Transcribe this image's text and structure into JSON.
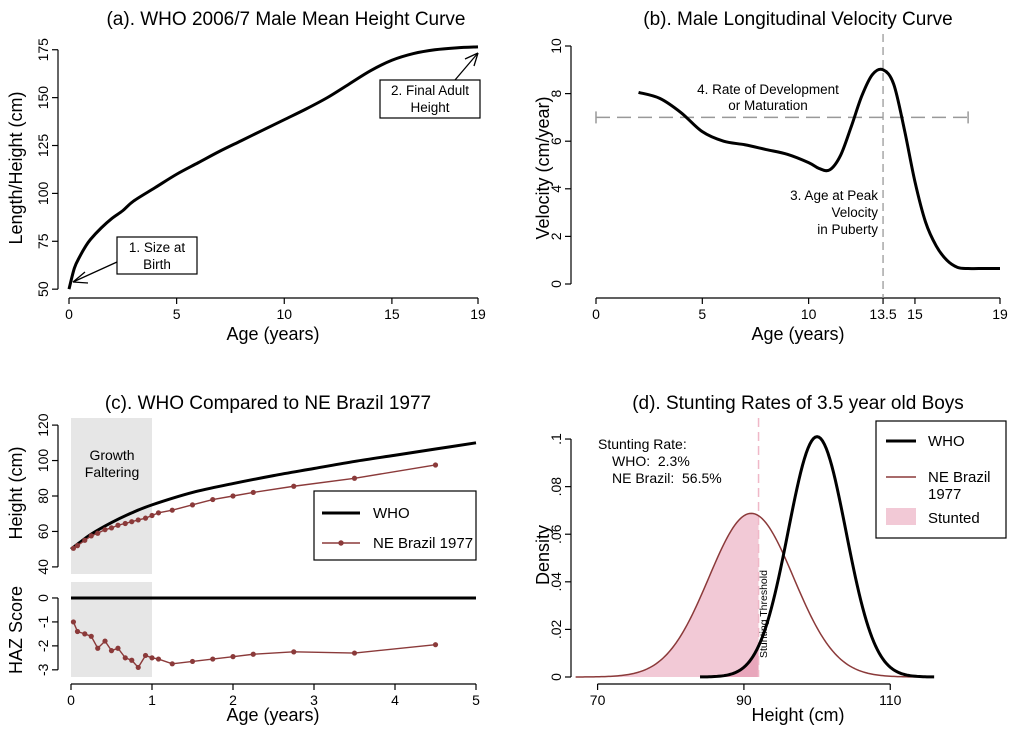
{
  "colors": {
    "who": "#000000",
    "brazil": "#8b3a3a",
    "stunted_fill": "#f2c9d6",
    "shade": "#e6e6e6",
    "dashed": "#999999",
    "threshold": "#f0b8c8"
  },
  "chart_data": [
    {
      "id": "a",
      "type": "line",
      "title": "(a). WHO 2006/7 Male Mean Height Curve",
      "xlabel": "Age (years)",
      "ylabel": "Length/Height (cm)",
      "xlim": [
        0,
        19
      ],
      "ylim": [
        48,
        178
      ],
      "xticks": [
        0,
        5,
        10,
        15,
        19
      ],
      "yticks": [
        50,
        75,
        100,
        125,
        150,
        175
      ],
      "series": [
        {
          "x": [
            0,
            0.25,
            0.5,
            0.75,
            1,
            1.5,
            2,
            2.5,
            3,
            4,
            5,
            6,
            7,
            8,
            9,
            10,
            11,
            12,
            13,
            14,
            15,
            16,
            17,
            18,
            19
          ],
          "y": [
            50,
            61,
            67,
            72,
            76,
            82,
            87,
            91,
            96,
            103,
            110,
            116,
            122,
            127.5,
            133,
            138.5,
            144,
            150,
            157,
            164,
            169.5,
            173,
            175,
            176,
            176.5
          ]
        }
      ],
      "annotations": [
        {
          "lines": [
            "1. Size at",
            "Birth"
          ],
          "x": 0,
          "y": 50
        },
        {
          "lines": [
            "2. Final Adult",
            "Height"
          ],
          "x": 19,
          "y": 176.5
        }
      ]
    },
    {
      "id": "b",
      "type": "line",
      "title": "(b). Male Longitudinal Velocity Curve",
      "xlabel": "Age (years)",
      "ylabel": "Velocity (cm/year)",
      "xlim": [
        0,
        19
      ],
      "ylim": [
        -0.3,
        10.5
      ],
      "xticks": [
        0,
        5,
        10,
        13.5,
        15,
        19
      ],
      "yticks": [
        0,
        2,
        4,
        6,
        8,
        10
      ],
      "series": [
        {
          "x": [
            2,
            3,
            4,
            5,
            6,
            7,
            8,
            9,
            10,
            10.5,
            11,
            11.5,
            12,
            12.5,
            13,
            13.5,
            14,
            14.5,
            15,
            15.5,
            16,
            16.5,
            17,
            17.5,
            18,
            19
          ],
          "y": [
            8.05,
            7.8,
            7.2,
            6.4,
            6.0,
            5.85,
            5.65,
            5.45,
            5.1,
            4.85,
            4.8,
            5.4,
            6.6,
            7.9,
            8.8,
            9.0,
            8.4,
            6.5,
            4.3,
            2.6,
            1.6,
            1.0,
            0.7,
            0.65,
            0.65,
            0.65
          ]
        }
      ],
      "reference_lines": [
        {
          "orientation": "horizontal",
          "value": 7,
          "from": 0,
          "to": 17.5
        },
        {
          "orientation": "vertical",
          "value": 13.5
        }
      ],
      "annotations": [
        {
          "lines": [
            "4. Rate of Development",
            "or Maturation"
          ],
          "x": 7.5,
          "y": 8.2
        },
        {
          "lines": [
            "3. Age at Peak",
            "Velocity",
            "in Puberty"
          ],
          "x": 11.2,
          "y": 3.4
        }
      ]
    },
    {
      "id": "c",
      "type": "line",
      "title": "(c). WHO Compared to NE Brazil 1977",
      "xlabel": "Age (years)",
      "xlim": [
        0,
        5
      ],
      "xticks": [
        0,
        1,
        2,
        3,
        4,
        5
      ],
      "shaded_region": {
        "x0": 0,
        "x1": 1,
        "lines": [
          "Growth",
          "Faltering"
        ]
      },
      "legend": {
        "position": "center-right",
        "entries": [
          "WHO",
          "NE Brazil 1977"
        ]
      },
      "panels": [
        {
          "ylabel": "Height (cm)",
          "ylim": [
            36,
            124
          ],
          "yticks": [
            40,
            60,
            80,
            100,
            120
          ],
          "series": [
            {
              "name": "WHO",
              "x": [
                0,
                0.1,
                0.25,
                0.5,
                0.75,
                1,
                1.5,
                2,
                2.5,
                3,
                3.5,
                4,
                4.5,
                5
              ],
              "y": [
                50,
                53.5,
                58.5,
                65,
                70.5,
                75,
                82,
                87,
                91.5,
                95.5,
                99.5,
                103,
                106.5,
                110
              ]
            },
            {
              "name": "NE Brazil 1977",
              "x": [
                0.03,
                0.08,
                0.17,
                0.25,
                0.33,
                0.42,
                0.5,
                0.58,
                0.67,
                0.75,
                0.83,
                0.92,
                1.0,
                1.08,
                1.25,
                1.5,
                1.75,
                2.0,
                2.25,
                2.75,
                3.5,
                4.5
              ],
              "y": [
                50.5,
                52,
                55,
                57.5,
                59,
                61,
                62,
                63.5,
                64.5,
                65.5,
                66.5,
                67.5,
                69,
                70.5,
                72,
                75,
                78,
                80,
                82,
                85.5,
                90,
                97.5
              ]
            }
          ]
        },
        {
          "ylabel": "HAZ Score",
          "ylim": [
            -3.3,
            0.5
          ],
          "yticks": [
            -3,
            -2,
            -1,
            0
          ],
          "series": [
            {
              "name": "WHO",
              "x": [
                0,
                5
              ],
              "y": [
                0,
                0
              ]
            },
            {
              "name": "NE Brazil 1977",
              "x": [
                0.03,
                0.08,
                0.17,
                0.25,
                0.33,
                0.42,
                0.5,
                0.58,
                0.67,
                0.75,
                0.83,
                0.92,
                1.0,
                1.08,
                1.25,
                1.5,
                1.75,
                2.0,
                2.25,
                2.75,
                3.5,
                4.5
              ],
              "y": [
                -1.0,
                -1.4,
                -1.5,
                -1.6,
                -2.1,
                -1.8,
                -2.2,
                -2.1,
                -2.5,
                -2.6,
                -2.9,
                -2.4,
                -2.5,
                -2.55,
                -2.75,
                -2.65,
                -2.55,
                -2.45,
                -2.35,
                -2.25,
                -2.3,
                -1.95
              ]
            }
          ]
        }
      ]
    },
    {
      "id": "d",
      "type": "area",
      "title": "(d). Stunting Rates of 3.5 year old Boys",
      "xlabel": "Height (cm)",
      "ylabel": "Density",
      "xlim": [
        65,
        125
      ],
      "ylim": [
        0,
        0.108
      ],
      "xticks": [
        70,
        90,
        110
      ],
      "yticks": [
        0,
        0.02,
        0.04,
        0.06,
        0.08,
        0.1
      ],
      "ytick_labels": [
        "0",
        ".02",
        ".04",
        ".06",
        ".08",
        ".1"
      ],
      "threshold": {
        "x": 92,
        "label": "Stunting Threshold"
      },
      "series": [
        {
          "name": "WHO",
          "distribution": "normal",
          "mean": 100,
          "sd": 3.95,
          "x_range": [
            84,
            116
          ]
        },
        {
          "name": "NE Brazil 1977",
          "distribution": "normal",
          "mean": 91,
          "sd": 5.8,
          "x_range": [
            67,
            115
          ]
        }
      ],
      "legend": {
        "position": "top-right",
        "entries": [
          "WHO",
          "NE Brazil 1977",
          "Stunted"
        ]
      },
      "stunting_rate": {
        "heading": "Stunting Rate:",
        "who": "WHO:  2.3%",
        "brazil": "NE Brazil:  56.5%"
      }
    }
  ]
}
